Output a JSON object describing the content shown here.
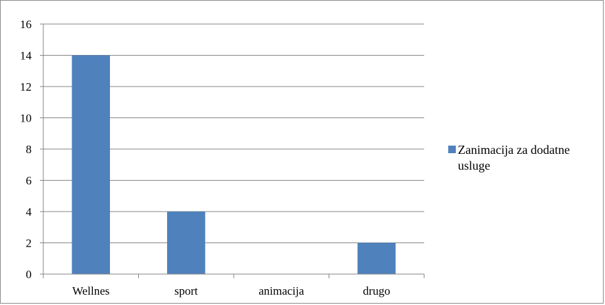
{
  "chart_data": {
    "type": "bar",
    "categories": [
      "Wellnes",
      "sport",
      "animacija",
      "drugo"
    ],
    "series": [
      {
        "name": "Zanimacija za dodatne usluge",
        "values": [
          14,
          4,
          0,
          2
        ],
        "color": "#4F81BD"
      }
    ],
    "ylim": [
      0,
      16
    ],
    "yticks": [
      0,
      2,
      4,
      6,
      8,
      10,
      12,
      14,
      16
    ],
    "grid": true,
    "legend_position": "right",
    "legend_lines": [
      "Zanimacija za dodatne",
      "usluge"
    ]
  }
}
